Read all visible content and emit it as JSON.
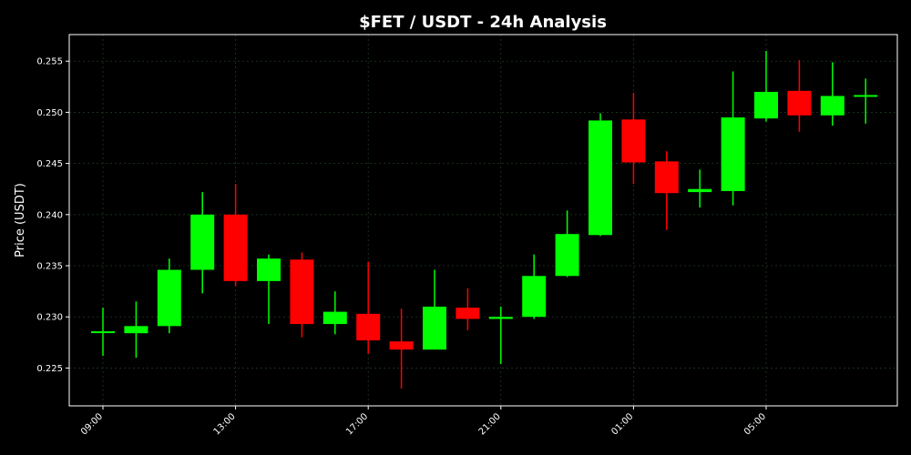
{
  "chart_data": {
    "type": "candlestick",
    "title": "$FET / USDT - 24h Analysis",
    "xlabel": "",
    "ylabel": "Price (USDT)",
    "x_ticks": [
      "09:00",
      "13:00",
      "17:00",
      "21:00",
      "01:00",
      "05:00"
    ],
    "y_ticks": [
      "0.225",
      "0.230",
      "0.235",
      "0.240",
      "0.245",
      "0.250",
      "0.255"
    ],
    "ylim": [
      0.2213,
      0.2576
    ],
    "grid": true,
    "candles": [
      {
        "time": "09:00",
        "open": 0.2285,
        "high": 0.2309,
        "low": 0.2262,
        "close": 0.2285
      },
      {
        "time": "10:00",
        "open": 0.2284,
        "high": 0.2315,
        "low": 0.226,
        "close": 0.2291
      },
      {
        "time": "11:00",
        "open": 0.2291,
        "high": 0.2357,
        "low": 0.2284,
        "close": 0.2346
      },
      {
        "time": "12:00",
        "open": 0.2346,
        "high": 0.2422,
        "low": 0.2323,
        "close": 0.24
      },
      {
        "time": "13:00",
        "open": 0.24,
        "high": 0.243,
        "low": 0.233,
        "close": 0.2335
      },
      {
        "time": "14:00",
        "open": 0.2335,
        "high": 0.2361,
        "low": 0.2293,
        "close": 0.2357
      },
      {
        "time": "15:00",
        "open": 0.2356,
        "high": 0.2363,
        "low": 0.228,
        "close": 0.2293
      },
      {
        "time": "16:00",
        "open": 0.2293,
        "high": 0.2325,
        "low": 0.2283,
        "close": 0.2305
      },
      {
        "time": "17:00",
        "open": 0.2303,
        "high": 0.2354,
        "low": 0.2264,
        "close": 0.2277
      },
      {
        "time": "18:00",
        "open": 0.2276,
        "high": 0.2308,
        "low": 0.223,
        "close": 0.2268
      },
      {
        "time": "19:00",
        "open": 0.2268,
        "high": 0.2346,
        "low": 0.2268,
        "close": 0.231
      },
      {
        "time": "20:00",
        "open": 0.2309,
        "high": 0.2328,
        "low": 0.2287,
        "close": 0.2298
      },
      {
        "time": "21:00",
        "open": 0.2298,
        "high": 0.231,
        "low": 0.2254,
        "close": 0.23
      },
      {
        "time": "22:00",
        "open": 0.23,
        "high": 0.2361,
        "low": 0.2298,
        "close": 0.234
      },
      {
        "time": "23:00",
        "open": 0.234,
        "high": 0.2404,
        "low": 0.2339,
        "close": 0.2381
      },
      {
        "time": "00:00",
        "open": 0.238,
        "high": 0.2499,
        "low": 0.2379,
        "close": 0.2492
      },
      {
        "time": "01:00",
        "open": 0.2493,
        "high": 0.2519,
        "low": 0.243,
        "close": 0.2451
      },
      {
        "time": "02:00",
        "open": 0.2452,
        "high": 0.2462,
        "low": 0.2385,
        "close": 0.2421
      },
      {
        "time": "03:00",
        "open": 0.2422,
        "high": 0.2444,
        "low": 0.2407,
        "close": 0.2425
      },
      {
        "time": "04:00",
        "open": 0.2423,
        "high": 0.254,
        "low": 0.2409,
        "close": 0.2495
      },
      {
        "time": "05:00",
        "open": 0.2494,
        "high": 0.256,
        "low": 0.2491,
        "close": 0.252
      },
      {
        "time": "06:00",
        "open": 0.2521,
        "high": 0.2551,
        "low": 0.2481,
        "close": 0.2497
      },
      {
        "time": "07:00",
        "open": 0.2497,
        "high": 0.2549,
        "low": 0.2487,
        "close": 0.2516
      },
      {
        "time": "08:00",
        "open": 0.2516,
        "high": 0.2533,
        "low": 0.2489,
        "close": 0.2516
      }
    ]
  },
  "colors": {
    "background": "#000000",
    "up": "#00ff00",
    "down": "#ff0000",
    "text": "#ffffff",
    "axis": "#ffffff",
    "grid": "#1e3a1e"
  }
}
